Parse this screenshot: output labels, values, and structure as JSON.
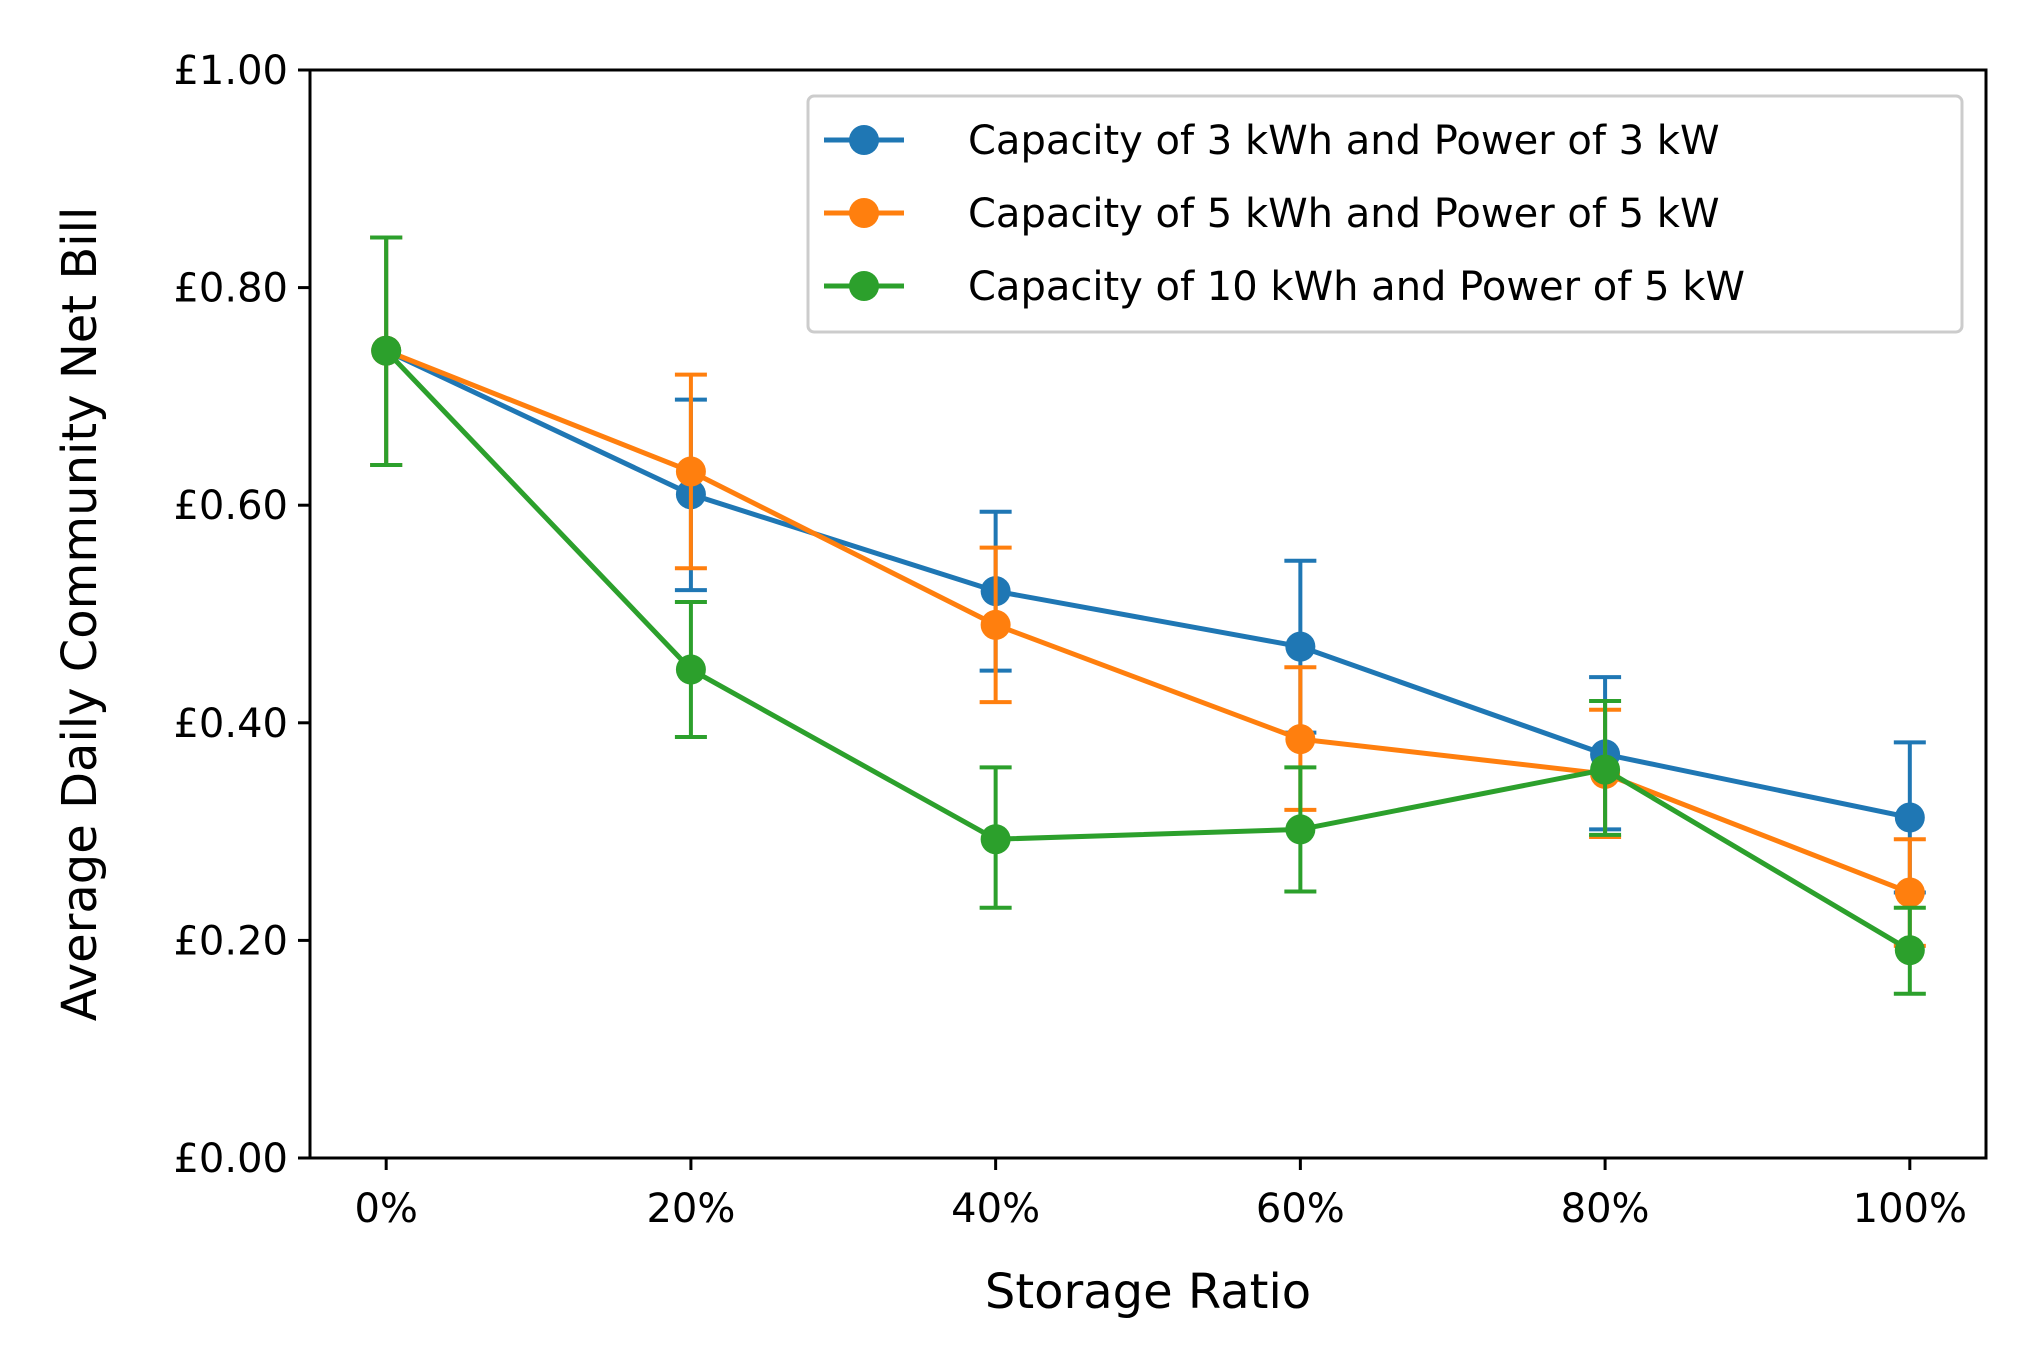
{
  "chart_data": {
    "type": "line",
    "title": "",
    "xlabel": "Storage Ratio",
    "ylabel": "Average Daily Community Net Bill",
    "categories": [
      "0%",
      "20%",
      "40%",
      "60%",
      "80%",
      "100%"
    ],
    "x": [
      0,
      20,
      40,
      60,
      80,
      100
    ],
    "xlim": [
      -5,
      105
    ],
    "ylim": [
      0,
      1.0
    ],
    "yticks": [
      0,
      0.2,
      0.4,
      0.6,
      0.8,
      1.0
    ],
    "ytick_labels": [
      "£0.00",
      "£0.20",
      "£0.40",
      "£0.60",
      "£0.80",
      "£1.00"
    ],
    "grid": false,
    "legend_position": "top-right",
    "series": [
      {
        "name": "Capacity of 3 kWh and Power of 3 kW",
        "color": "#1f77b4",
        "values": [
          0.742,
          0.61,
          0.521,
          0.47,
          0.371,
          0.313
        ],
        "err_low": [
          0.637,
          0.522,
          0.448,
          0.391,
          0.302,
          0.244
        ],
        "err_high": [
          0.846,
          0.697,
          0.594,
          0.549,
          0.442,
          0.382
        ]
      },
      {
        "name": "Capacity of 5 kWh and Power of 5 kW",
        "color": "#ff7f0e",
        "values": [
          0.742,
          0.631,
          0.49,
          0.385,
          0.353,
          0.244
        ],
        "err_low": [
          0.637,
          0.542,
          0.419,
          0.32,
          0.295,
          0.195
        ],
        "err_high": [
          0.846,
          0.72,
          0.561,
          0.451,
          0.412,
          0.293
        ]
      },
      {
        "name": "Capacity of 10 kWh and Power of 5 kW",
        "color": "#2ca02c",
        "values": [
          0.742,
          0.449,
          0.293,
          0.302,
          0.357,
          0.191
        ],
        "err_low": [
          0.637,
          0.387,
          0.23,
          0.245,
          0.297,
          0.151
        ],
        "err_high": [
          0.846,
          0.511,
          0.359,
          0.359,
          0.42,
          0.23
        ]
      }
    ]
  }
}
